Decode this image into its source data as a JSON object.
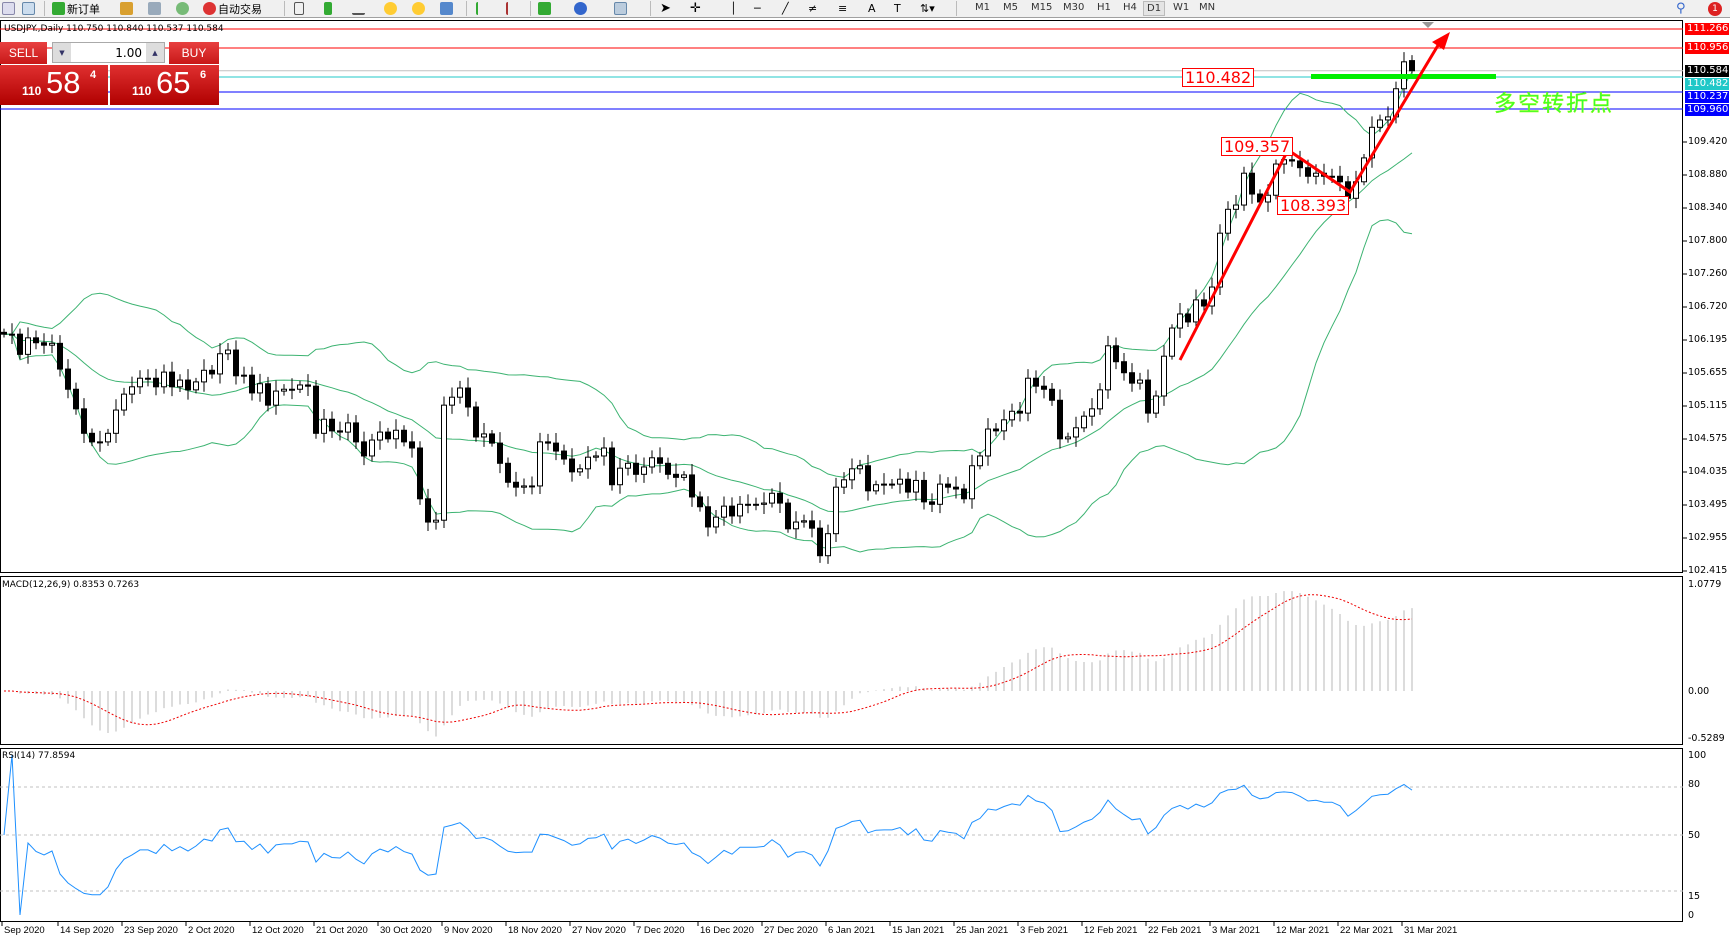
{
  "toolbar": {
    "new_order": "新订单",
    "auto_trading": "自动交易",
    "timeframes": [
      "M1",
      "M5",
      "M15",
      "M30",
      "H1",
      "H4",
      "D1",
      "W1",
      "MN"
    ],
    "active_timeframe": "D1",
    "notification_count": "1"
  },
  "chart": {
    "title": "USDJPY.,Daily  110.750 110.840 110.537 110.584"
  },
  "trade_panel": {
    "sell_label": "SELL",
    "buy_label": "BUY",
    "lot": "1.00",
    "sell_big": "110",
    "sell_main": "58",
    "sell_pip": "4",
    "buy_big": "110",
    "buy_main": "65",
    "buy_pip": "6"
  },
  "price_axis": {
    "ticks": [
      "109.420",
      "108.880",
      "108.340",
      "107.800",
      "107.260",
      "106.720",
      "106.195",
      "105.655",
      "105.115",
      "104.575",
      "104.035",
      "103.495",
      "102.955",
      "102.415"
    ]
  },
  "levels": [
    {
      "price": "111.266",
      "color": "#ff0000"
    },
    {
      "price": "110.956",
      "color": "#ff0000"
    },
    {
      "price": "110.584",
      "color": "#000000",
      "line": "#c0c0c0"
    },
    {
      "price": "110.482",
      "color": "#20c8c8"
    },
    {
      "price": "110.237",
      "color": "#0000ff"
    },
    {
      "price": "109.960",
      "color": "#0000ff"
    }
  ],
  "annotations": {
    "label_1": "110.482",
    "label_2": "109.357",
    "label_3": "108.393",
    "text": "多空转折点",
    "arrow_color": "#ff0000",
    "zone_color": "#00ee00"
  },
  "macd": {
    "label": "MACD(12,26,9) 0.8353 0.7263",
    "axis": [
      "1.0779",
      "0.00",
      "-0.5289"
    ]
  },
  "rsi": {
    "label": "RSI(14) 77.8594",
    "axis": [
      "100",
      "80",
      "50",
      "15",
      "0"
    ]
  },
  "chart_data": {
    "type": "candlestick",
    "symbol": "USDJPY.",
    "timeframe": "Daily",
    "indicators": [
      "Bollinger Bands(20,2)",
      "MACD(12,26,9)",
      "RSI(14)"
    ],
    "ylim": [
      102.415,
      111.266
    ],
    "last_bar": {
      "open": 110.75,
      "high": 110.84,
      "low": 110.537,
      "close": 110.584
    },
    "close": [
      106.28,
      106.28,
      105.95,
      106.22,
      106.14,
      106.1,
      106.13,
      105.71,
      105.38,
      105.06,
      104.66,
      104.52,
      104.52,
      104.66,
      105.04,
      105.3,
      105.42,
      105.56,
      105.56,
      105.42,
      105.66,
      105.42,
      105.53,
      105.37,
      105.5,
      105.69,
      105.63,
      105.96,
      106.02,
      105.6,
      105.61,
      105.32,
      105.47,
      105.12,
      105.35,
      105.38,
      105.38,
      105.45,
      105.43,
      104.66,
      104.89,
      104.7,
      104.68,
      104.83,
      104.52,
      104.29,
      104.55,
      104.68,
      104.57,
      104.71,
      104.52,
      104.42,
      103.59,
      103.21,
      103.24,
      105.12,
      105.25,
      105.4,
      105.09,
      104.6,
      104.65,
      104.5,
      104.17,
      103.86,
      103.78,
      103.8,
      103.8,
      104.52,
      104.5,
      104.37,
      104.24,
      104.03,
      104.08,
      104.27,
      104.29,
      104.42,
      103.82,
      104.09,
      104.17,
      103.99,
      104.11,
      104.26,
      104.17,
      103.99,
      103.94,
      103.98,
      103.62,
      103.46,
      103.13,
      103.29,
      103.47,
      103.31,
      103.5,
      103.5,
      103.5,
      103.52,
      103.68,
      103.52,
      103.1,
      103.21,
      103.23,
      103.11,
      102.66,
      103.02,
      103.78,
      103.9,
      104.08,
      104.13,
      103.72,
      103.82,
      103.83,
      103.83,
      103.91,
      103.7,
      103.89,
      103.54,
      103.5,
      103.83,
      103.78,
      103.75,
      103.59,
      104.13,
      104.29,
      104.73,
      104.7,
      104.88,
      105.02,
      104.99,
      105.56,
      105.43,
      105.38,
      105.2,
      104.57,
      104.6,
      104.75,
      104.94,
      105.06,
      105.37,
      106.09,
      105.83,
      105.65,
      105.48,
      105.53,
      104.99,
      105.27,
      105.92,
      106.38,
      106.61,
      106.48,
      106.84,
      106.74,
      107.05,
      107.93,
      108.32,
      108.39,
      108.91,
      108.57,
      108.44,
      108.55,
      109.06,
      109.13,
      109.11,
      109.0,
      108.86,
      108.91,
      108.86,
      108.86,
      108.77,
      108.5,
      108.77,
      109.16,
      109.66,
      109.78,
      109.83,
      110.29,
      110.73,
      110.584
    ],
    "date_labels": [
      "Sep 2020",
      "14 Sep 2020",
      "23 Sep 2020",
      "2 Oct 2020",
      "12 Oct 2020",
      "21 Oct 2020",
      "30 Oct 2020",
      "9 Nov 2020",
      "18 Nov 2020",
      "27 Nov 2020",
      "7 Dec 2020",
      "16 Dec 2020",
      "27 Dec 2020",
      "6 Jan 2021",
      "15 Jan 2021",
      "25 Jan 2021",
      "3 Feb 2021",
      "12 Feb 2021",
      "22 Feb 2021",
      "3 Mar 2021",
      "12 Mar 2021",
      "22 Mar 2021",
      "31 Mar 2021"
    ],
    "rsi_levels": [
      80,
      50,
      15
    ]
  }
}
